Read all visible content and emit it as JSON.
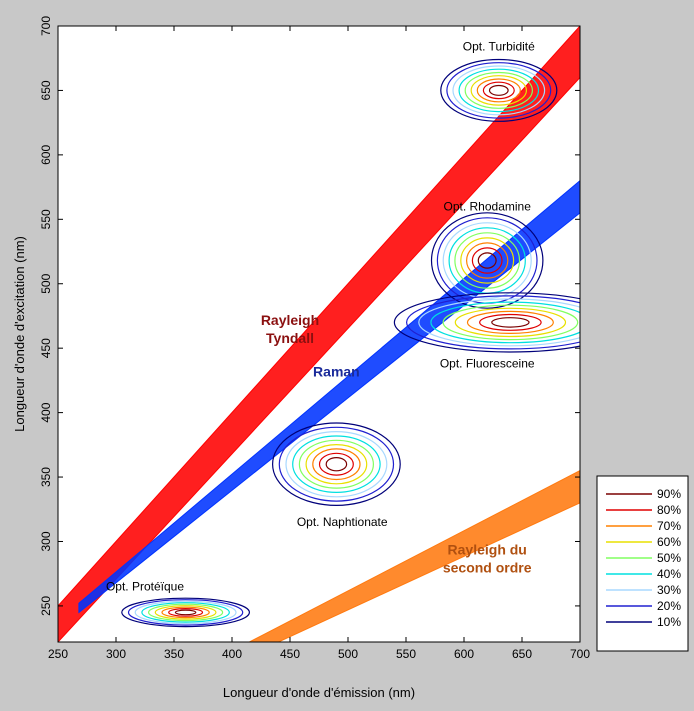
{
  "chart_data": {
    "type": "contour",
    "title": "",
    "xlabel": "Longueur d'onde d'émission (nm)",
    "ylabel": "Longueur d'onde d'excitation (nm)",
    "xlim": [
      250,
      700
    ],
    "ylim": [
      222,
      700
    ],
    "xticks": [
      250,
      300,
      350,
      400,
      450,
      500,
      550,
      600,
      650,
      700
    ],
    "yticks": [
      250,
      300,
      350,
      400,
      450,
      500,
      550,
      600,
      650,
      700
    ],
    "legend": {
      "placement": "right",
      "levels": [
        {
          "label": "90%",
          "color": "#7a0000"
        },
        {
          "label": "80%",
          "color": "#e00000"
        },
        {
          "label": "70%",
          "color": "#ff8000"
        },
        {
          "label": "60%",
          "color": "#e8e000"
        },
        {
          "label": "50%",
          "color": "#80ff60"
        },
        {
          "label": "40%",
          "color": "#00e0e0"
        },
        {
          "label": "30%",
          "color": "#a8d8ff"
        },
        {
          "label": "20%",
          "color": "#2020d0"
        },
        {
          "label": "10%",
          "color": "#00007a"
        }
      ]
    },
    "bands": [
      {
        "name": "Rayleigh Tyndall",
        "color": "#ff0000",
        "polygon": [
          [
            250,
            250
          ],
          [
            700,
            700
          ],
          [
            700,
            660
          ],
          [
            250,
            222
          ]
        ],
        "label_lines": [
          "Rayleigh",
          "Tyndall"
        ],
        "label_at": [
          450,
          468
        ],
        "label_color": "#8b1010"
      },
      {
        "name": "Raman",
        "color": "#0033ff",
        "polygon": [
          [
            268,
            252
          ],
          [
            700,
            580
          ],
          [
            700,
            555
          ],
          [
            268,
            245
          ]
        ],
        "label_lines": [
          "Raman"
        ],
        "label_at": [
          490,
          428
        ],
        "label_color": "#1a2a9a"
      },
      {
        "name": "Rayleigh du second ordre",
        "color": "#ff7a10",
        "polygon": [
          [
            415,
            222
          ],
          [
            700,
            355
          ],
          [
            700,
            330
          ],
          [
            440,
            222
          ]
        ],
        "label_lines": [
          "Rayleigh du",
          "second ordre"
        ],
        "label_at": [
          620,
          290
        ],
        "label_color": "#b05010"
      }
    ],
    "optima": [
      {
        "name": "Opt. Turbidité",
        "center": [
          630,
          650
        ],
        "radius": [
          50,
          24
        ],
        "label_at": [
          630,
          681
        ]
      },
      {
        "name": "Opt. Rhodamine",
        "center": [
          620,
          518
        ],
        "radius": [
          48,
          37
        ],
        "label_at": [
          620,
          557
        ]
      },
      {
        "name": "Opt. Fluoresceine",
        "center": [
          640,
          470
        ],
        "radius": [
          100,
          23
        ],
        "label_at": [
          620,
          435
        ]
      },
      {
        "name": "Opt. Naphtionate",
        "center": [
          490,
          360
        ],
        "radius": [
          55,
          32
        ],
        "label_at": [
          495,
          312
        ]
      },
      {
        "name": "Opt. Protéïque",
        "center": [
          360,
          245
        ],
        "radius": [
          55,
          11
        ],
        "label_at": [
          325,
          262
        ]
      }
    ]
  }
}
